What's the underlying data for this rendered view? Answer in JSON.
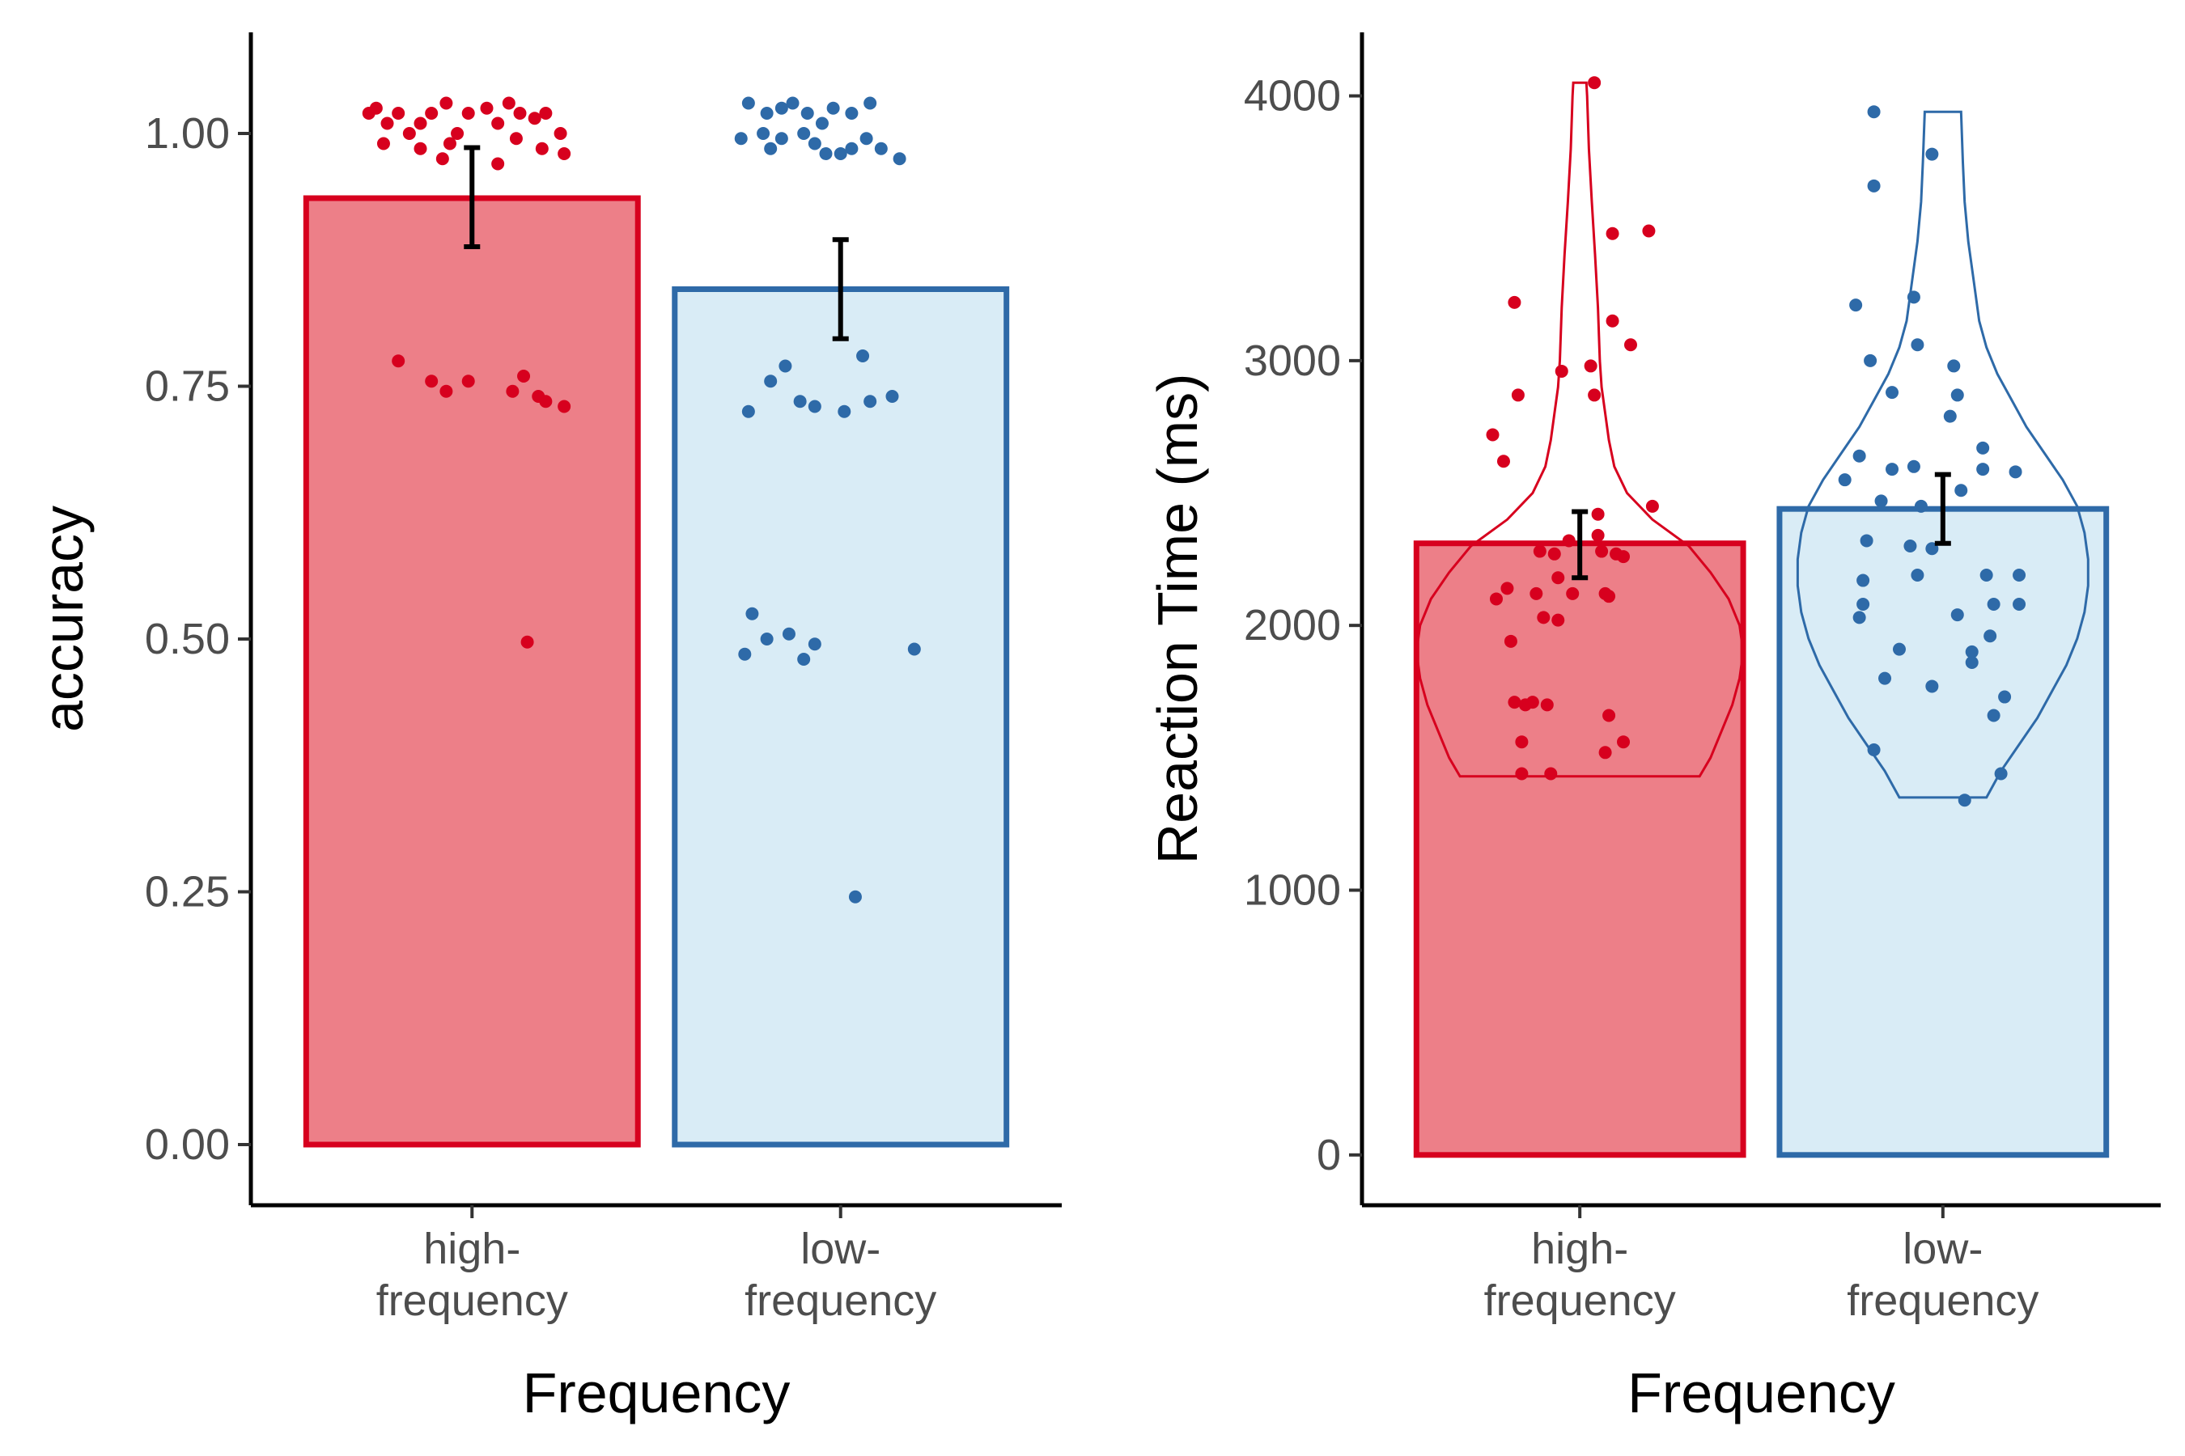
{
  "chart_data": [
    {
      "type": "bar",
      "categories": [
        "high-\nfrequency",
        "low-\nfrequency"
      ],
      "values": [
        0.936,
        0.846
      ],
      "error": [
        [
          0.888,
          0.986
        ],
        [
          0.797,
          0.895
        ]
      ],
      "xlabel": "Frequency",
      "ylabel": "accuracy",
      "ylim": [
        -0.06,
        1.1
      ],
      "yticks": [
        0,
        0.25,
        0.5,
        0.75,
        1
      ],
      "ytick_labels": [
        "0.00",
        "0.25",
        "0.50",
        "0.75",
        "1.00"
      ],
      "grid": false,
      "legend": "none",
      "colors": {
        "stroke": [
          "#d7001e",
          "#2e6aa8"
        ],
        "fill": [
          "#ed7f88",
          "#d9ecf6"
        ],
        "errorbar": "#000000"
      },
      "points": [
        [
          [
            0.72,
            1.02
          ],
          [
            0.74,
            1.025
          ],
          [
            0.77,
            1.01
          ],
          [
            0.8,
            1.02
          ],
          [
            0.83,
            1.0
          ],
          [
            0.86,
            1.01
          ],
          [
            0.89,
            1.02
          ],
          [
            0.93,
            1.03
          ],
          [
            0.96,
            1.0
          ],
          [
            0.99,
            1.02
          ],
          [
            1.04,
            1.025
          ],
          [
            1.07,
            1.01
          ],
          [
            1.1,
            1.03
          ],
          [
            1.13,
            1.02
          ],
          [
            1.17,
            1.015
          ],
          [
            1.2,
            1.02
          ],
          [
            1.24,
            1.0
          ],
          [
            0.76,
            0.99
          ],
          [
            0.86,
            0.985
          ],
          [
            0.94,
            0.99
          ],
          [
            1.12,
            0.995
          ],
          [
            1.19,
            0.985
          ],
          [
            1.25,
            0.98
          ],
          [
            0.92,
            0.975
          ],
          [
            1.07,
            0.97
          ],
          [
            0.8,
            0.775
          ],
          [
            0.89,
            0.755
          ],
          [
            0.93,
            0.745
          ],
          [
            0.99,
            0.755
          ],
          [
            1.11,
            0.745
          ],
          [
            1.14,
            0.76
          ],
          [
            1.18,
            0.74
          ],
          [
            1.2,
            0.735
          ],
          [
            1.25,
            0.73
          ],
          [
            1.15,
            0.497
          ]
        ],
        [
          [
            1.75,
            1.03
          ],
          [
            1.8,
            1.02
          ],
          [
            1.84,
            1.025
          ],
          [
            1.87,
            1.03
          ],
          [
            1.91,
            1.02
          ],
          [
            1.95,
            1.01
          ],
          [
            1.98,
            1.025
          ],
          [
            2.03,
            1.02
          ],
          [
            2.08,
            1.03
          ],
          [
            1.79,
            1.0
          ],
          [
            1.84,
            0.995
          ],
          [
            1.9,
            1.0
          ],
          [
            1.93,
            0.99
          ],
          [
            1.96,
            0.98
          ],
          [
            2.03,
            0.985
          ],
          [
            2.07,
            0.995
          ],
          [
            2.11,
            0.985
          ],
          [
            2.16,
            0.975
          ],
          [
            1.73,
            0.995
          ],
          [
            1.81,
            0.985
          ],
          [
            2.0,
            0.98
          ],
          [
            1.85,
            0.77
          ],
          [
            1.81,
            0.755
          ],
          [
            1.75,
            0.725
          ],
          [
            1.89,
            0.735
          ],
          [
            1.93,
            0.73
          ],
          [
            2.01,
            0.725
          ],
          [
            2.06,
            0.78
          ],
          [
            2.08,
            0.735
          ],
          [
            2.14,
            0.74
          ],
          [
            1.76,
            0.525
          ],
          [
            1.74,
            0.485
          ],
          [
            1.8,
            0.5
          ],
          [
            1.86,
            0.505
          ],
          [
            1.9,
            0.48
          ],
          [
            1.93,
            0.495
          ],
          [
            2.2,
            0.49
          ],
          [
            2.04,
            0.245
          ]
        ]
      ]
    },
    {
      "type": "bar",
      "categories": [
        "high-\nfrequency",
        "low-\nfrequency"
      ],
      "values": [
        2310,
        2440
      ],
      "error": [
        [
          2180,
          2430
        ],
        [
          2310,
          2570
        ]
      ],
      "xlabel": "Frequency",
      "ylabel": "Reaction Time (ms)",
      "ylim": [
        -190,
        4240
      ],
      "yticks": [
        0,
        1000,
        2000,
        3000,
        4000
      ],
      "ytick_labels": [
        "0",
        "1000",
        "2000",
        "3000",
        "4000"
      ],
      "grid": false,
      "legend": "none",
      "colors": {
        "stroke": [
          "#d7001e",
          "#2e6aa8"
        ],
        "fill": [
          "#ed7f88",
          "#d9ecf6"
        ],
        "errorbar": "#000000"
      },
      "violins": [
        {
          "range": [
            1430,
            4050
          ],
          "profile": [
            [
              1430,
              0.33
            ],
            [
              1500,
              0.36
            ],
            [
              1600,
              0.39
            ],
            [
              1700,
              0.42
            ],
            [
              1800,
              0.44
            ],
            [
              1900,
              0.45
            ],
            [
              2000,
              0.44
            ],
            [
              2100,
              0.41
            ],
            [
              2200,
              0.36
            ],
            [
              2300,
              0.3
            ],
            [
              2400,
              0.2
            ],
            [
              2500,
              0.13
            ],
            [
              2600,
              0.095
            ],
            [
              2700,
              0.08
            ],
            [
              2800,
              0.07
            ],
            [
              2900,
              0.06
            ],
            [
              3000,
              0.055
            ],
            [
              3200,
              0.05
            ],
            [
              3400,
              0.042
            ],
            [
              3600,
              0.033
            ],
            [
              3800,
              0.025
            ],
            [
              4000,
              0.02
            ],
            [
              4050,
              0.018
            ]
          ]
        },
        {
          "range": [
            1350,
            3940
          ],
          "profile": [
            [
              1350,
              0.12
            ],
            [
              1450,
              0.16
            ],
            [
              1550,
              0.21
            ],
            [
              1650,
              0.26
            ],
            [
              1750,
              0.3
            ],
            [
              1850,
              0.34
            ],
            [
              1950,
              0.37
            ],
            [
              2050,
              0.39
            ],
            [
              2150,
              0.4
            ],
            [
              2250,
              0.4
            ],
            [
              2350,
              0.39
            ],
            [
              2450,
              0.37
            ],
            [
              2550,
              0.33
            ],
            [
              2650,
              0.28
            ],
            [
              2750,
              0.23
            ],
            [
              2850,
              0.19
            ],
            [
              2950,
              0.15
            ],
            [
              3050,
              0.12
            ],
            [
              3150,
              0.1
            ],
            [
              3300,
              0.085
            ],
            [
              3450,
              0.07
            ],
            [
              3600,
              0.06
            ],
            [
              3750,
              0.055
            ],
            [
              3940,
              0.05
            ]
          ]
        }
      ],
      "points": [
        [
          [
            1.04,
            4050
          ],
          [
            1.19,
            3490
          ],
          [
            1.09,
            3480
          ],
          [
            0.82,
            3220
          ],
          [
            1.09,
            3150
          ],
          [
            0.95,
            2960
          ],
          [
            1.14,
            3060
          ],
          [
            1.03,
            2980
          ],
          [
            0.83,
            2870
          ],
          [
            1.04,
            2870
          ],
          [
            0.76,
            2720
          ],
          [
            0.79,
            2620
          ],
          [
            1.2,
            2450
          ],
          [
            1.05,
            2420
          ],
          [
            0.97,
            2320
          ],
          [
            1.05,
            2340
          ],
          [
            1.1,
            2270
          ],
          [
            1.06,
            2280
          ],
          [
            0.89,
            2280
          ],
          [
            0.93,
            2270
          ],
          [
            1.12,
            2260
          ],
          [
            0.94,
            2180
          ],
          [
            0.8,
            2140
          ],
          [
            0.77,
            2100
          ],
          [
            0.88,
            2120
          ],
          [
            0.98,
            2120
          ],
          [
            0.9,
            2030
          ],
          [
            0.94,
            2020
          ],
          [
            1.07,
            2120
          ],
          [
            1.08,
            2110
          ],
          [
            0.81,
            1940
          ],
          [
            0.82,
            1710
          ],
          [
            0.85,
            1700
          ],
          [
            0.87,
            1710
          ],
          [
            0.91,
            1700
          ],
          [
            1.08,
            1660
          ],
          [
            0.84,
            1560
          ],
          [
            1.12,
            1560
          ],
          [
            1.07,
            1520
          ],
          [
            0.84,
            1440
          ],
          [
            0.92,
            1440
          ]
        ],
        [
          [
            1.81,
            3940
          ],
          [
            1.97,
            3780
          ],
          [
            1.81,
            3660
          ],
          [
            1.76,
            3210
          ],
          [
            1.92,
            3240
          ],
          [
            1.93,
            3060
          ],
          [
            1.8,
            3000
          ],
          [
            1.86,
            2880
          ],
          [
            2.03,
            2980
          ],
          [
            2.04,
            2870
          ],
          [
            2.02,
            2790
          ],
          [
            1.73,
            2550
          ],
          [
            1.77,
            2640
          ],
          [
            1.86,
            2590
          ],
          [
            1.92,
            2600
          ],
          [
            2.11,
            2670
          ],
          [
            2.11,
            2590
          ],
          [
            2.2,
            2580
          ],
          [
            1.83,
            2470
          ],
          [
            1.94,
            2450
          ],
          [
            2.05,
            2510
          ],
          [
            1.79,
            2320
          ],
          [
            1.91,
            2300
          ],
          [
            1.97,
            2290
          ],
          [
            1.93,
            2190
          ],
          [
            1.78,
            2170
          ],
          [
            2.12,
            2190
          ],
          [
            2.21,
            2190
          ],
          [
            1.78,
            2080
          ],
          [
            2.14,
            2080
          ],
          [
            2.04,
            2040
          ],
          [
            2.21,
            2080
          ],
          [
            1.77,
            2030
          ],
          [
            1.88,
            1910
          ],
          [
            2.13,
            1960
          ],
          [
            2.08,
            1900
          ],
          [
            2.08,
            1860
          ],
          [
            1.84,
            1800
          ],
          [
            1.97,
            1770
          ],
          [
            2.17,
            1730
          ],
          [
            2.14,
            1660
          ],
          [
            1.81,
            1530
          ],
          [
            2.16,
            1440
          ],
          [
            2.06,
            1340
          ]
        ]
      ]
    }
  ]
}
